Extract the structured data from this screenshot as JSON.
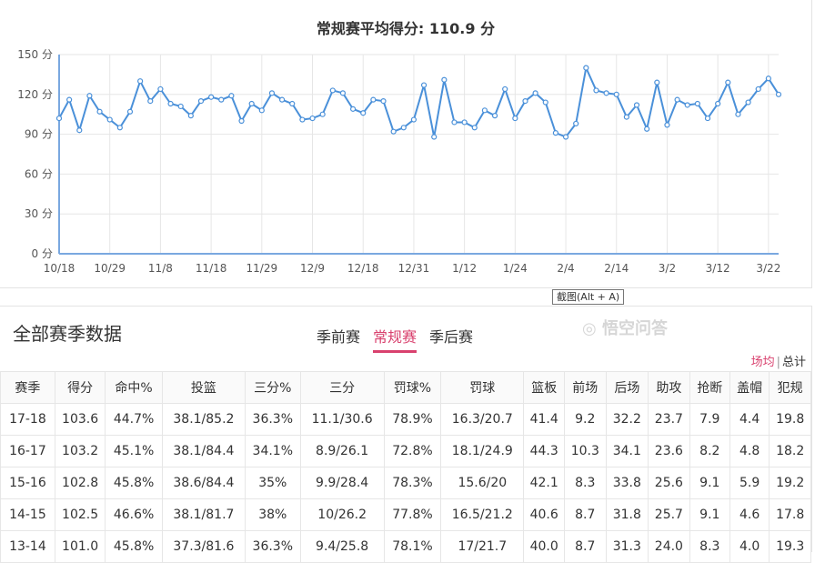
{
  "chart_data": {
    "type": "line",
    "title": "常规赛平均得分: 110.9 分",
    "ylim": [
      0,
      150
    ],
    "yticks": [
      "0 分",
      "30 分",
      "60 分",
      "90 分",
      "120 分",
      "150 分"
    ],
    "ytick_values": [
      0,
      30,
      60,
      90,
      120,
      150
    ],
    "xtick_labels": [
      "10/18",
      "10/29",
      "11/8",
      "11/18",
      "11/29",
      "12/9",
      "12/18",
      "12/31",
      "1/12",
      "1/24",
      "2/4",
      "2/14",
      "3/2",
      "3/12",
      "3/22"
    ],
    "xtick_every": 5,
    "values": [
      102,
      116,
      93,
      119,
      107,
      101,
      95,
      107,
      130,
      115,
      124,
      113,
      111,
      104,
      115,
      118,
      116,
      119,
      100,
      113,
      108,
      121,
      116,
      113,
      101,
      102,
      105,
      123,
      121,
      109,
      106,
      116,
      115,
      92,
      95,
      101,
      127,
      88,
      131,
      99,
      99,
      95,
      108,
      104,
      124,
      102,
      115,
      121,
      114,
      91,
      88,
      98,
      140,
      123,
      121,
      120,
      103,
      112,
      94,
      129,
      97,
      116,
      112,
      113,
      102,
      113,
      129,
      105,
      114,
      124,
      132,
      120
    ],
    "grid": true,
    "color": "#4a90d9"
  },
  "section": {
    "title": "全部赛季数据",
    "tabs": [
      "季前赛",
      "常规赛",
      "季后赛"
    ],
    "active_tab": 1,
    "mode_avg": "场均",
    "mode_sep": "|",
    "mode_total": "总计"
  },
  "table": {
    "headers": [
      "赛季",
      "得分",
      "命中%",
      "投篮",
      "三分%",
      "三分",
      "罚球%",
      "罚球",
      "篮板",
      "前场",
      "后场",
      "助攻",
      "抢断",
      "盖帽",
      "犯规"
    ],
    "rows": [
      [
        "17-18",
        "103.6",
        "44.7%",
        "38.1/85.2",
        "36.3%",
        "11.1/30.6",
        "78.9%",
        "16.3/20.7",
        "41.4",
        "9.2",
        "32.2",
        "23.7",
        "7.9",
        "4.4",
        "19.8"
      ],
      [
        "16-17",
        "103.2",
        "45.1%",
        "38.1/84.4",
        "34.1%",
        "8.9/26.1",
        "72.8%",
        "18.1/24.9",
        "44.3",
        "10.3",
        "34.1",
        "23.6",
        "8.2",
        "4.8",
        "18.2"
      ],
      [
        "15-16",
        "102.8",
        "45.8%",
        "38.6/84.4",
        "35%",
        "9.9/28.4",
        "78.3%",
        "15.6/20",
        "42.1",
        "8.3",
        "33.8",
        "25.6",
        "9.1",
        "5.9",
        "19.2"
      ],
      [
        "14-15",
        "102.5",
        "46.6%",
        "38.1/81.7",
        "38%",
        "10/26.2",
        "77.8%",
        "16.5/21.2",
        "40.6",
        "8.7",
        "31.8",
        "25.7",
        "9.1",
        "4.6",
        "17.8"
      ],
      [
        "13-14",
        "101.0",
        "45.8%",
        "37.3/81.6",
        "36.3%",
        "9.4/25.8",
        "78.1%",
        "17/21.7",
        "40.0",
        "8.7",
        "31.3",
        "24.0",
        "8.3",
        "4.0",
        "19.3"
      ]
    ]
  },
  "tooltip": "截图(Alt + A)",
  "watermark": "悟空问答"
}
